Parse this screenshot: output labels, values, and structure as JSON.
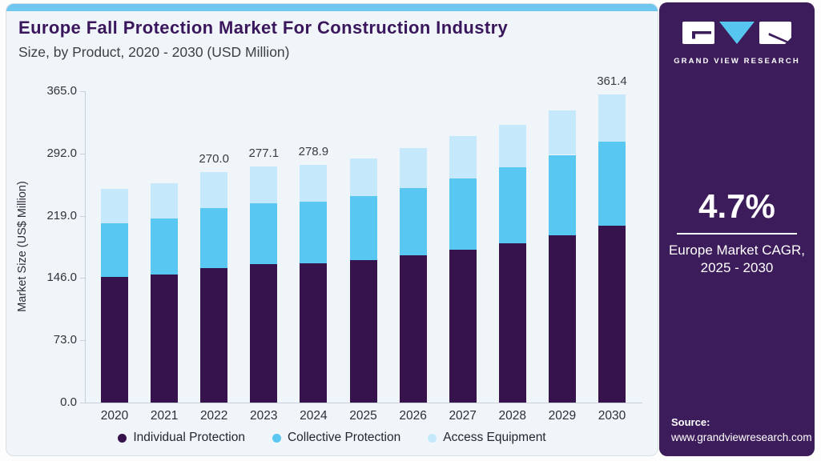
{
  "header": {
    "title": "Europe Fall Protection Market For Construction Industry",
    "subtitle": "Size, by Product, 2020 - 2030 (USD Million)"
  },
  "sidebar": {
    "brand_name": "GRAND VIEW RESEARCH",
    "cagr": {
      "value": "4.7%",
      "label_line1": "Europe Market CAGR,",
      "label_line2": "2025 - 2030"
    },
    "source": {
      "label": "Source:",
      "url": "www.grandviewresearch.com"
    }
  },
  "colors": {
    "accent_strip": "#6FC6EF",
    "panel_bg": "#EFF5F9",
    "sidebar_bg": "#3C1C5A",
    "title_text": "#3A175C",
    "individual_protection": "#36134D",
    "collective_protection": "#58C8F2",
    "access_equipment": "#C5E9FA"
  },
  "chart_data": {
    "type": "bar",
    "stacked": true,
    "title": "Europe Fall Protection Market For Construction Industry",
    "subtitle": "Size, by Product, 2020 - 2030 (USD Million)",
    "xlabel": "",
    "ylabel": "Market Size (US$ Million)",
    "ylim": [
      0,
      365
    ],
    "yticks": [
      0,
      73,
      146,
      219,
      292,
      365
    ],
    "ytick_labels": [
      "0.0",
      "73.0",
      "146.0",
      "219.0",
      "292.0",
      "365.0"
    ],
    "grid": false,
    "legend_position": "bottom",
    "categories": [
      "2020",
      "2021",
      "2022",
      "2023",
      "2024",
      "2025",
      "2026",
      "2027",
      "2028",
      "2029",
      "2030"
    ],
    "series": [
      {
        "name": "Individual Protection",
        "color": "#36134D",
        "values": [
          147.4,
          150.5,
          157.4,
          162.1,
          163.7,
          166.8,
          172.4,
          179.3,
          187.1,
          196.5,
          207.5
        ]
      },
      {
        "name": "Collective Protection",
        "color": "#58C8F2",
        "values": [
          63.2,
          65.4,
          70.3,
          71.3,
          71.9,
          75.7,
          79.5,
          83.6,
          89.2,
          93.9,
          98.5
        ]
      },
      {
        "name": "Access Equipment",
        "color": "#C5E9FA",
        "values": [
          40.1,
          41.6,
          42.3,
          43.7,
          43.3,
          44.1,
          46.2,
          49.1,
          49.4,
          52.2,
          55.4
        ]
      }
    ],
    "totals": [
      250.7,
      257.5,
      270.0,
      277.1,
      278.9,
      286.6,
      298.1,
      312.0,
      325.7,
      342.6,
      361.4
    ],
    "bar_total_labels": [
      "",
      "",
      "270.0",
      "277.1",
      "278.9",
      "",
      "",
      "",
      "",
      "",
      "361.4"
    ]
  }
}
